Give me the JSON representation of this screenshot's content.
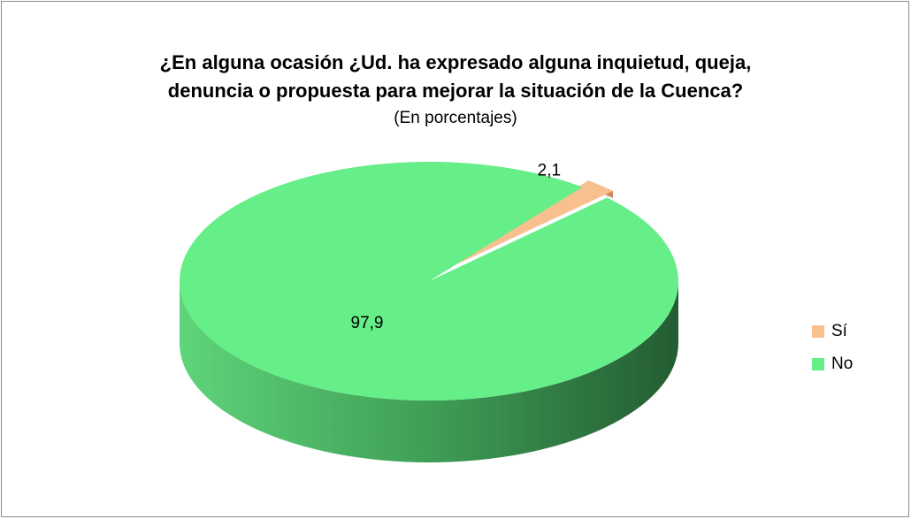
{
  "chart_data": {
    "type": "pie",
    "title": [
      "¿En alguna ocasión ¿Ud. ha expresado alguna inquietud, queja,",
      "denuncia o propuesta para mejorar la situación de la Cuenca?"
    ],
    "subtitle": "(En porcentajes)",
    "categories": [
      "Sí",
      "No"
    ],
    "values": [
      2.1,
      97.9
    ],
    "value_labels": [
      "2,1",
      "97,9"
    ],
    "colors": [
      "#f9c08f",
      "#66ee88"
    ],
    "legend": "right"
  }
}
